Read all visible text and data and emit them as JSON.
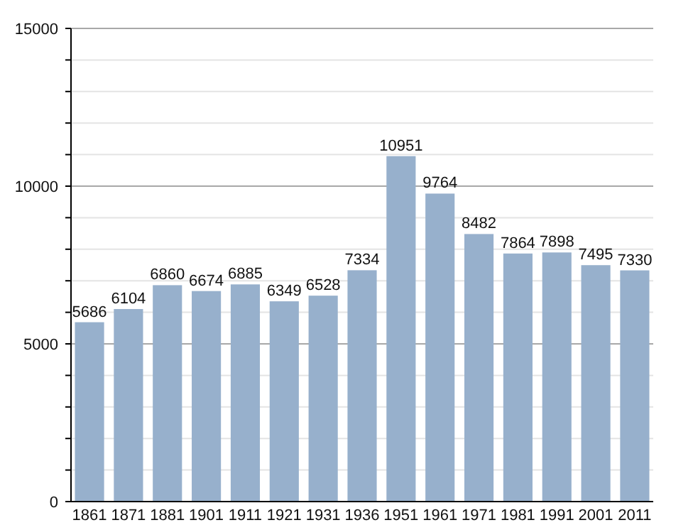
{
  "chart_data": {
    "type": "bar",
    "categories": [
      "1861",
      "1871",
      "1881",
      "1901",
      "1911",
      "1921",
      "1931",
      "1936",
      "1951",
      "1961",
      "1971",
      "1981",
      "1991",
      "2001",
      "2011"
    ],
    "values": [
      5686,
      6104,
      6860,
      6674,
      6885,
      6349,
      6528,
      7334,
      10951,
      9764,
      8482,
      7864,
      7898,
      7495,
      7330
    ],
    "color": "#97b0cc",
    "ylim": [
      0,
      15000
    ],
    "yticks": [
      0,
      {
        "value": 1000,
        "label": null
      },
      {
        "value": 2000,
        "label": null
      },
      {
        "value": 3000,
        "label": null
      },
      {
        "value": 4000,
        "label": null
      },
      5000,
      {
        "value": 6000,
        "label": null
      },
      {
        "value": 7000,
        "label": null
      },
      {
        "value": 8000,
        "label": null
      },
      {
        "value": 9000,
        "label": null
      },
      10000,
      {
        "value": 11000,
        "label": null
      },
      {
        "value": 12000,
        "label": null
      },
      {
        "value": 13000,
        "label": null
      },
      {
        "value": 14000,
        "label": null
      },
      15000
    ],
    "grid": true,
    "data_labels": true
  }
}
